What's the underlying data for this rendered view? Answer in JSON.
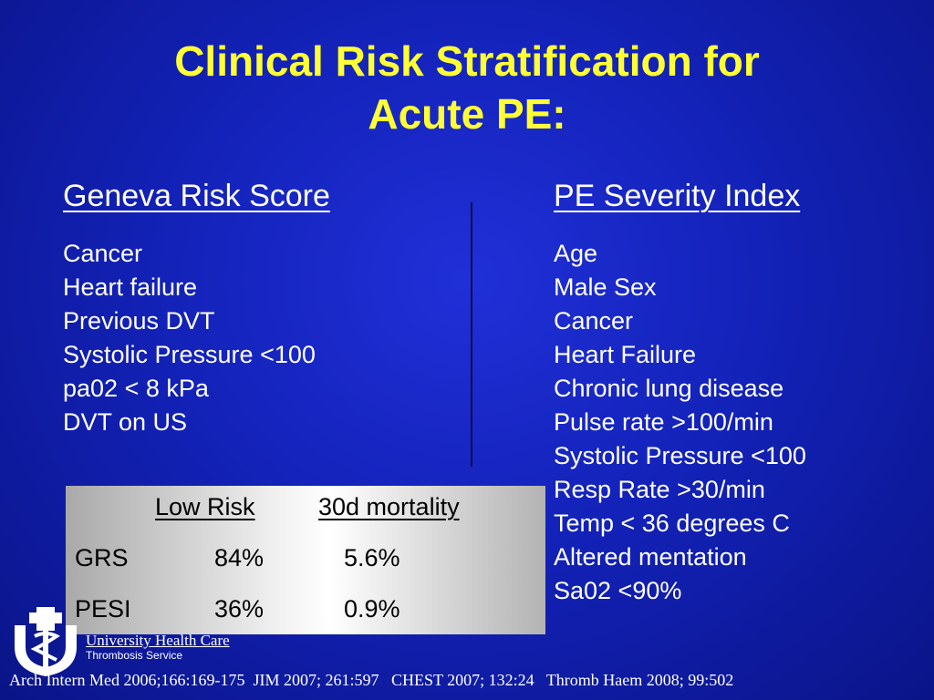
{
  "slide": {
    "title_line1": "Clinical Risk Stratification for",
    "title_line2": "Acute PE:"
  },
  "left_column": {
    "heading": "Geneva Risk Score",
    "items": [
      "Cancer",
      "Heart failure",
      "Previous DVT",
      "Systolic Pressure <100",
      "pa02 < 8 kPa",
      "DVT on US"
    ]
  },
  "right_column": {
    "heading": "PE Severity Index",
    "items": [
      "Age",
      "Male Sex",
      "Cancer",
      "Heart Failure",
      "Chronic lung disease",
      "Pulse rate >100/min",
      "Systolic Pressure <100",
      "Resp Rate >30/min",
      "Temp < 36 degrees C",
      "Altered mentation",
      "Sa02 <90%"
    ]
  },
  "table": {
    "headers": [
      "Low Risk",
      "30d mortality"
    ],
    "rows": [
      {
        "label": "GRS",
        "low_risk": "84%",
        "mortality": "5.6%"
      },
      {
        "label": "PESI",
        "low_risk": "36%",
        "mortality": "0.9%"
      }
    ]
  },
  "logo": {
    "name": "University Health Care",
    "subtitle": "Thrombosis Service"
  },
  "footer": {
    "references": "Arch Intern Med 2006;166:169-175  JIM 2007; 261:597   CHEST 2007; 132:24   Thromb Haem 2008; 99:502"
  }
}
